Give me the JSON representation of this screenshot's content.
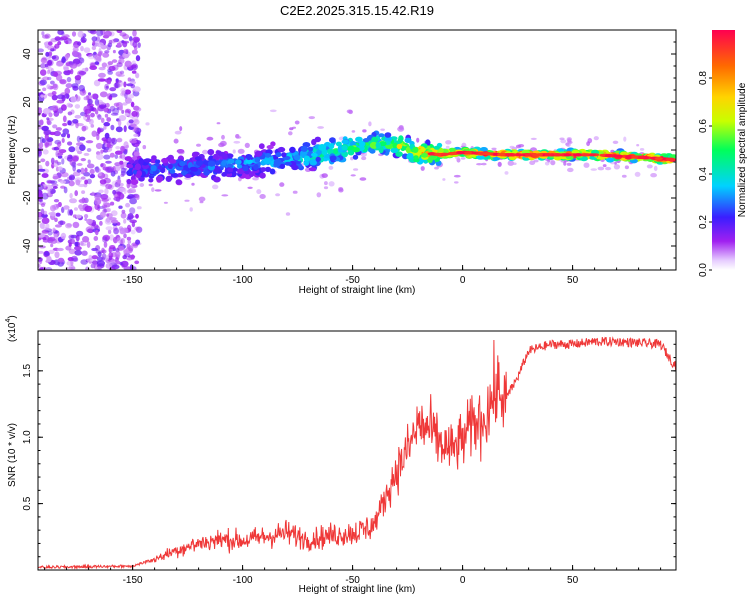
{
  "title": "C2E2.2025.315.15.42.R19",
  "chart_data": [
    {
      "type": "heatmap",
      "title": "",
      "xlabel": "Height of straight line (km)",
      "ylabel": "Frequency (Hz)",
      "xlim": [
        -193,
        97
      ],
      "ylim": [
        -50,
        50
      ],
      "xticks": [
        -150,
        -100,
        -50,
        0,
        50
      ],
      "yticks": [
        -40,
        -20,
        0,
        20,
        40
      ],
      "ridge": {
        "x": [
          -150,
          -140,
          -120,
          -100,
          -80,
          -60,
          -50,
          -40,
          -30,
          -20,
          -10,
          0,
          20,
          40,
          60,
          80,
          96
        ],
        "freq": [
          -8,
          -8,
          -7,
          -6,
          -4,
          -1,
          1,
          3,
          2,
          -1,
          -2,
          -1,
          -2,
          -2,
          -2,
          -3,
          -4
        ],
        "amplitude": [
          0.25,
          0.3,
          0.3,
          0.35,
          0.4,
          0.5,
          0.55,
          0.6,
          0.7,
          0.85,
          0.9,
          0.95,
          0.98,
          0.98,
          0.98,
          0.95,
          0.9
        ]
      },
      "noise_region": {
        "x_from": -193,
        "x_to": -147,
        "freq_from": -50,
        "freq_to": 50
      }
    },
    {
      "type": "colorbar",
      "label": "Normalized spectral amplitude",
      "range": [
        0,
        1
      ],
      "ticks": [
        0.0,
        0.2,
        0.4,
        0.6,
        0.8
      ],
      "tick_labels": [
        "0.0",
        "0.2",
        "0.4",
        "0.6",
        "0.8"
      ]
    },
    {
      "type": "line",
      "title": "",
      "xlabel": "Height of straight line (km)",
      "ylabel": "SNR (10 * v/v)",
      "multiplier_label": "(x10",
      "multiplier_exp": "4",
      "xlim": [
        -193,
        97
      ],
      "ylim": [
        0,
        18000
      ],
      "xticks": [
        -150,
        -100,
        -50,
        0,
        50
      ],
      "yticks": [
        5000,
        10000,
        15000
      ],
      "ytick_labels": [
        "0.5",
        "1.0",
        "1.5"
      ],
      "series": [
        {
          "name": "SNR",
          "color": "#ef3838",
          "x": [
            -193,
            -150,
            -140,
            -130,
            -120,
            -110,
            -100,
            -90,
            -80,
            -70,
            -60,
            -50,
            -45,
            -40,
            -35,
            -30,
            -25,
            -20,
            -15,
            -10,
            -5,
            0,
            5,
            10,
            15,
            20,
            25,
            30,
            40,
            50,
            60,
            70,
            80,
            90,
            96
          ],
          "y": [
            200,
            300,
            800,
            1500,
            2000,
            2300,
            2200,
            2500,
            2800,
            2300,
            2600,
            2800,
            3000,
            3500,
            5500,
            7500,
            9000,
            11000,
            10500,
            9500,
            9000,
            9800,
            11000,
            11500,
            13500,
            13000,
            14500,
            16500,
            17000,
            17000,
            17200,
            17200,
            17100,
            17000,
            15500
          ]
        }
      ]
    }
  ]
}
